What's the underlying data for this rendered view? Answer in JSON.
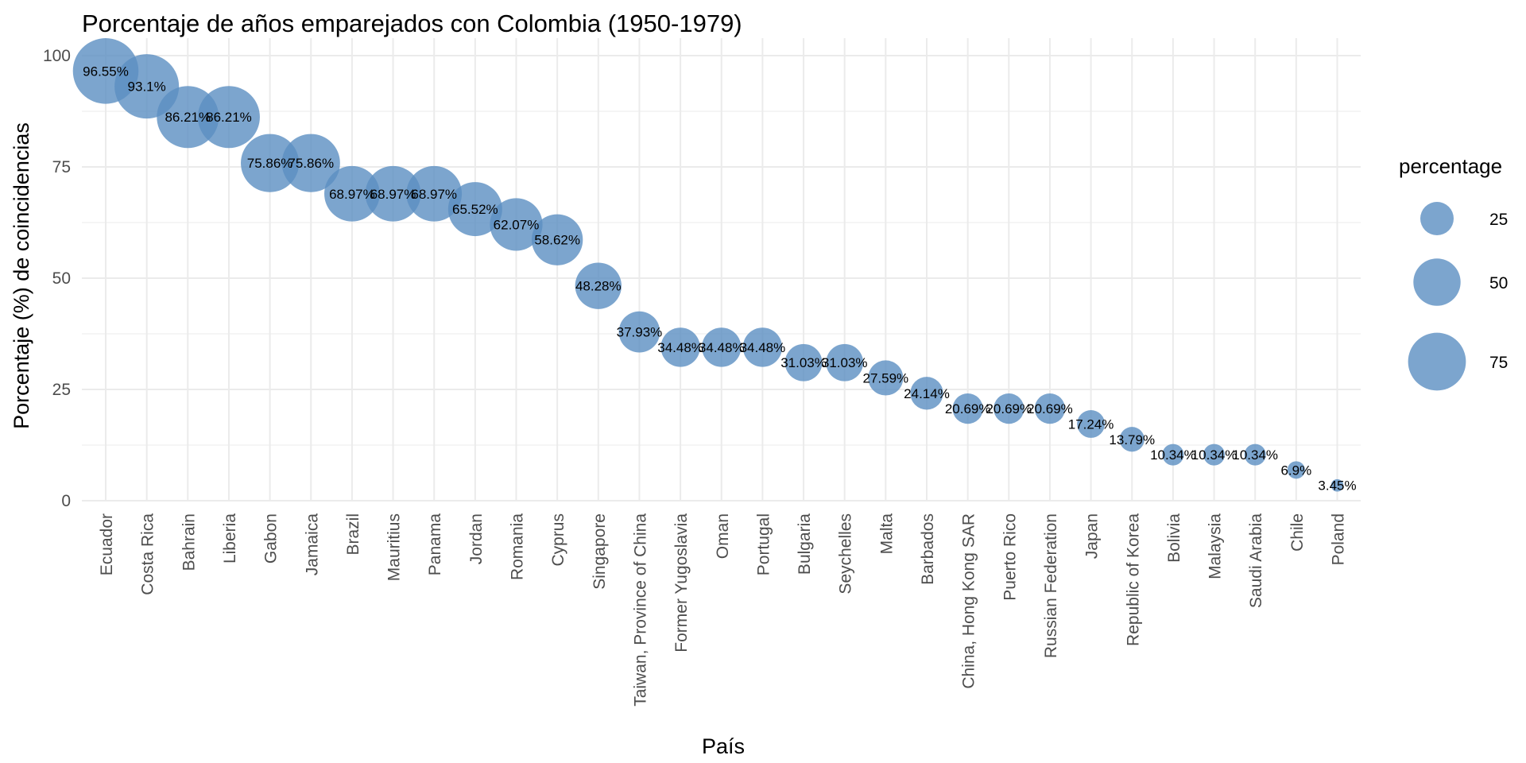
{
  "chart_data": {
    "type": "scatter",
    "title": "Porcentaje de años emparejados con Colombia (1950-1979)",
    "xlabel": "País",
    "ylabel": "Porcentaje (%) de coincidencias",
    "ylim": [
      0,
      100
    ],
    "yticks": [
      0,
      25,
      50,
      75,
      100
    ],
    "grid": true,
    "legend": {
      "title": "percentage",
      "placement": "right",
      "values": [
        25,
        50,
        75
      ]
    },
    "colors": {
      "bubble": "#5b8fc2",
      "grid": "#ebebeb",
      "tick_text": "#4d4d4d"
    },
    "categories": [
      "Ecuador",
      "Costa Rica",
      "Bahrain",
      "Liberia",
      "Gabon",
      "Jamaica",
      "Brazil",
      "Mauritius",
      "Panama",
      "Jordan",
      "Romania",
      "Cyprus",
      "Singapore",
      "Taiwan, Province of China",
      "Former Yugoslavia",
      "Oman",
      "Portugal",
      "Bulgaria",
      "Seychelles",
      "Malta",
      "Barbados",
      "China, Hong Kong SAR",
      "Puerto Rico",
      "Russian Federation",
      "Japan",
      "Republic of Korea",
      "Bolivia",
      "Malaysia",
      "Saudi Arabia",
      "Chile",
      "Poland"
    ],
    "values": [
      96.55,
      93.1,
      86.21,
      86.21,
      75.86,
      75.86,
      68.97,
      68.97,
      68.97,
      65.52,
      62.07,
      58.62,
      48.28,
      37.93,
      34.48,
      34.48,
      34.48,
      31.03,
      31.03,
      27.59,
      24.14,
      20.69,
      20.69,
      20.69,
      17.24,
      13.79,
      10.34,
      10.34,
      10.34,
      6.9,
      3.45
    ],
    "labels": [
      "96.55%",
      "93.1%",
      "86.21%",
      "86.21%",
      "75.86%",
      "75.86%",
      "68.97%",
      "68.97%",
      "68.97%",
      "65.52%",
      "62.07%",
      "58.62%",
      "48.28%",
      "37.93%",
      "34.48%",
      "34.48%",
      "34.48%",
      "31.03%",
      "31.03%",
      "27.59%",
      "24.14%",
      "20.69%",
      "20.69%",
      "20.69%",
      "17.24%",
      "13.79%",
      "10.34%",
      "10.34%",
      "10.34%",
      "6.9%",
      "3.45%"
    ]
  }
}
